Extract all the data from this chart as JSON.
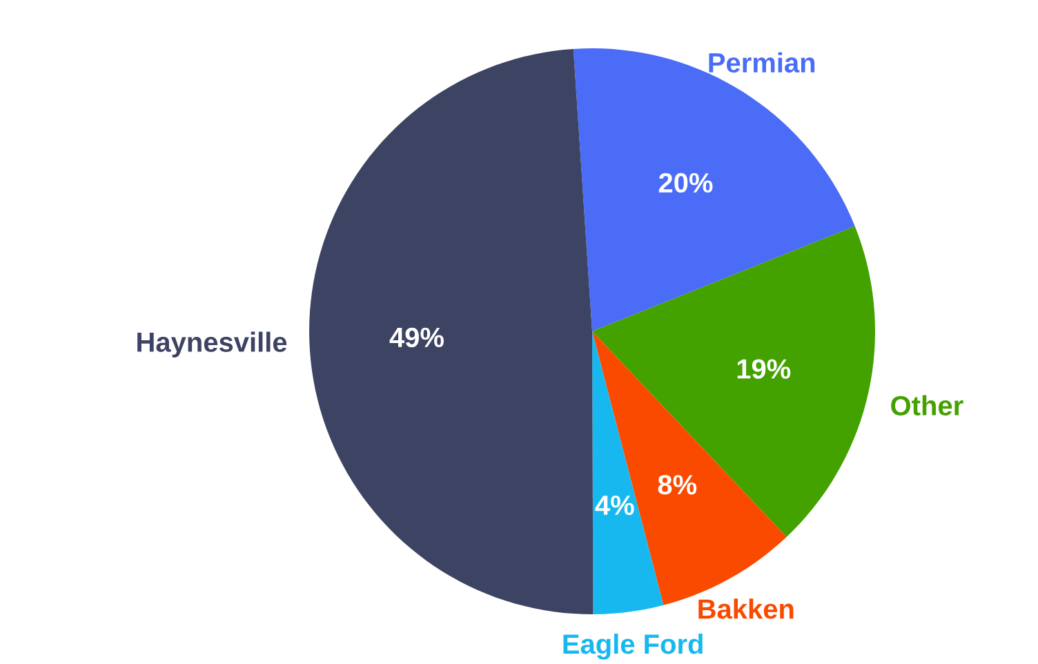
{
  "chart_data": {
    "type": "pie",
    "categories": [
      "Permian",
      "Other",
      "Bakken",
      "Eagle Ford",
      "Haynesville"
    ],
    "values": [
      20,
      19,
      8,
      4,
      49
    ],
    "value_labels": [
      "20%",
      "19%",
      "8%",
      "4%",
      "49%"
    ],
    "colors": [
      "#4a6cf7",
      "#43a100",
      "#fa4a00",
      "#17b8f0",
      "#3d4463"
    ]
  }
}
